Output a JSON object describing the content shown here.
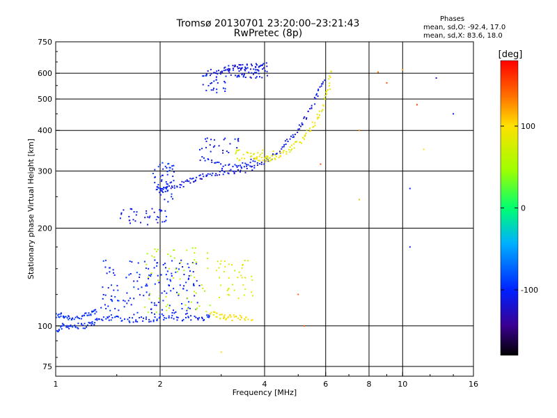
{
  "header": {
    "title": "Tromsø 20130701 23:20:00–23:21:43",
    "subtitle": "RwPretec (8p)"
  },
  "phases_note": {
    "heading": "Phases",
    "line_o": "mean, sd,O: -92.4, 17.0",
    "line_x": "mean, sd,X:  83.6, 18.0"
  },
  "colorbar": {
    "label": "[deg]",
    "range": [
      -180,
      180
    ],
    "ticks": [
      {
        "value": 100,
        "label": "100"
      },
      {
        "value": 0,
        "label": "0"
      },
      {
        "value": -100,
        "label": "-100"
      }
    ]
  },
  "chart_data": {
    "type": "scatter",
    "xlabel": "Frequency [MHz]",
    "ylabel": "Stationary phase Virtual Height [km]",
    "xscale": "log",
    "yscale": "log",
    "xlim": [
      1,
      16
    ],
    "ylim": [
      70,
      750
    ],
    "grid": true,
    "xticks": [
      {
        "value": 1,
        "label": "1"
      },
      {
        "value": 2,
        "label": "2"
      },
      {
        "value": 4,
        "label": "4"
      },
      {
        "value": 6,
        "label": "6"
      },
      {
        "value": 8,
        "label": "8"
      },
      {
        "value": 10,
        "label": "10"
      },
      {
        "value": 16,
        "label": "16"
      }
    ],
    "yticks": [
      {
        "value": 75,
        "label": "75"
      },
      {
        "value": 100,
        "label": "100"
      },
      {
        "value": 200,
        "label": "200"
      },
      {
        "value": 300,
        "label": "300"
      },
      {
        "value": 400,
        "label": "400"
      },
      {
        "value": 500,
        "label": "500"
      },
      {
        "value": 600,
        "label": "600"
      },
      {
        "value": 750,
        "label": "750"
      }
    ],
    "traces": [
      {
        "note": "E-layer O trace",
        "points": [
          [
            1.0,
            107
          ],
          [
            1.03,
            108
          ],
          [
            1.06,
            107
          ],
          [
            1.1,
            106
          ],
          [
            1.15,
            106
          ],
          [
            1.2,
            107
          ],
          [
            1.25,
            108
          ],
          [
            1.28,
            110
          ],
          [
            1.32,
            112
          ]
        ],
        "phase": -95
      },
      {
        "note": "E-layer low",
        "points": [
          [
            1.0,
            96
          ],
          [
            1.03,
            99
          ],
          [
            1.06,
            100
          ],
          [
            1.1,
            100
          ],
          [
            1.15,
            100
          ],
          [
            1.2,
            100
          ],
          [
            1.25,
            101
          ],
          [
            1.3,
            103
          ],
          [
            1.35,
            105
          ],
          [
            1.42,
            106
          ],
          [
            1.5,
            106
          ],
          [
            1.6,
            105
          ],
          [
            1.7,
            104
          ],
          [
            1.8,
            105
          ],
          [
            1.9,
            105
          ],
          [
            2.0,
            106
          ],
          [
            2.1,
            106
          ],
          [
            2.25,
            105
          ],
          [
            2.4,
            105
          ],
          [
            2.55,
            106
          ],
          [
            2.7,
            106
          ],
          [
            2.8,
            107
          ]
        ],
        "phase": -100
      },
      {
        "note": "Es yellow X trace",
        "points": [
          [
            2.8,
            110
          ],
          [
            2.9,
            108
          ],
          [
            3.0,
            107
          ],
          [
            3.1,
            106
          ],
          [
            3.2,
            106
          ],
          [
            3.35,
            106
          ],
          [
            3.5,
            106
          ],
          [
            3.7,
            106
          ]
        ],
        "phase": 95
      },
      {
        "note": "F1 O trace",
        "points": [
          [
            1.95,
            265
          ],
          [
            2.0,
            262
          ],
          [
            2.05,
            263
          ],
          [
            2.1,
            265
          ],
          [
            2.2,
            268
          ],
          [
            2.3,
            272
          ],
          [
            2.4,
            278
          ],
          [
            2.5,
            283
          ],
          [
            2.6,
            287
          ],
          [
            2.7,
            290
          ],
          [
            2.85,
            294
          ],
          [
            3.0,
            296
          ],
          [
            3.2,
            297
          ],
          [
            3.4,
            300
          ],
          [
            3.6,
            305
          ],
          [
            3.8,
            312
          ],
          [
            4.0,
            320
          ],
          [
            4.2,
            332
          ],
          [
            4.4,
            345
          ],
          [
            4.6,
            362
          ],
          [
            4.8,
            382
          ],
          [
            5.0,
            405
          ],
          [
            5.2,
            430
          ],
          [
            5.4,
            460
          ],
          [
            5.6,
            500
          ],
          [
            5.8,
            540
          ],
          [
            5.95,
            580
          ]
        ],
        "phase": -110
      },
      {
        "note": "F2 X trace",
        "points": [
          [
            3.5,
            338
          ],
          [
            3.7,
            333
          ],
          [
            3.9,
            328
          ],
          [
            4.1,
            330
          ],
          [
            4.3,
            335
          ],
          [
            4.5,
            340
          ],
          [
            4.7,
            348
          ],
          [
            4.9,
            360
          ],
          [
            5.1,
            375
          ],
          [
            5.3,
            392
          ],
          [
            5.5,
            412
          ],
          [
            5.7,
            440
          ],
          [
            5.9,
            470
          ],
          [
            6.05,
            510
          ],
          [
            6.15,
            560
          ],
          [
            6.2,
            620
          ]
        ],
        "phase": 90
      },
      {
        "note": "F2 O spread",
        "points": [
          [
            2.6,
            330
          ],
          [
            2.8,
            320
          ],
          [
            3.0,
            312
          ],
          [
            3.2,
            308
          ],
          [
            3.4,
            310
          ],
          [
            3.6,
            318
          ],
          [
            3.8,
            325
          ]
        ],
        "phase": -105
      },
      {
        "note": "multiple hop top",
        "points": [
          [
            2.7,
            600
          ],
          [
            2.9,
            610
          ],
          [
            3.1,
            620
          ],
          [
            3.3,
            625
          ],
          [
            3.5,
            628
          ],
          [
            3.7,
            630
          ],
          [
            3.9,
            632
          ],
          [
            4.1,
            635
          ]
        ],
        "phase": -115
      }
    ],
    "clusters": [
      {
        "x": [
          1.35,
          2.6
        ],
        "y": [
          108,
          160
        ],
        "n": 160,
        "phase": -100
      },
      {
        "x": [
          1.8,
          2.8
        ],
        "y": [
          110,
          175
        ],
        "n": 60,
        "phase": 60
      },
      {
        "x": [
          2.9,
          3.7
        ],
        "y": [
          120,
          160
        ],
        "n": 40,
        "phase": 80
      },
      {
        "x": [
          1.5,
          2.1
        ],
        "y": [
          205,
          230
        ],
        "n": 40,
        "phase": -110
      },
      {
        "x": [
          1.9,
          2.2
        ],
        "y": [
          240,
          320
        ],
        "n": 45,
        "phase": -100
      },
      {
        "x": [
          2.6,
          3.4
        ],
        "y": [
          340,
          380
        ],
        "n": 25,
        "phase": -110
      },
      {
        "x": [
          2.6,
          3.1
        ],
        "y": [
          520,
          600
        ],
        "n": 30,
        "phase": -105
      },
      {
        "x": [
          3.0,
          4.1
        ],
        "y": [
          580,
          640
        ],
        "n": 60,
        "phase": -110
      },
      {
        "x": [
          3.3,
          4.3
        ],
        "y": [
          320,
          350
        ],
        "n": 30,
        "phase": 85
      }
    ],
    "outliers": [
      {
        "x": 8.5,
        "y": 605,
        "phase": 140
      },
      {
        "x": 9.0,
        "y": 560,
        "phase": 150
      },
      {
        "x": 10.0,
        "y": 615,
        "phase": 120
      },
      {
        "x": 12.5,
        "y": 580,
        "phase": -110
      },
      {
        "x": 11.0,
        "y": 480,
        "phase": 155
      },
      {
        "x": 14.0,
        "y": 450,
        "phase": -110
      },
      {
        "x": 7.5,
        "y": 400,
        "phase": 130
      },
      {
        "x": 11.5,
        "y": 350,
        "phase": 100
      },
      {
        "x": 10.5,
        "y": 265,
        "phase": -100
      },
      {
        "x": 7.5,
        "y": 245,
        "phase": 110
      },
      {
        "x": 10.5,
        "y": 175,
        "phase": -110
      },
      {
        "x": 5.0,
        "y": 125,
        "phase": 140
      },
      {
        "x": 5.2,
        "y": 100,
        "phase": 150
      },
      {
        "x": 3.0,
        "y": 83,
        "phase": 100
      },
      {
        "x": 5.8,
        "y": 315,
        "phase": 150
      }
    ]
  }
}
